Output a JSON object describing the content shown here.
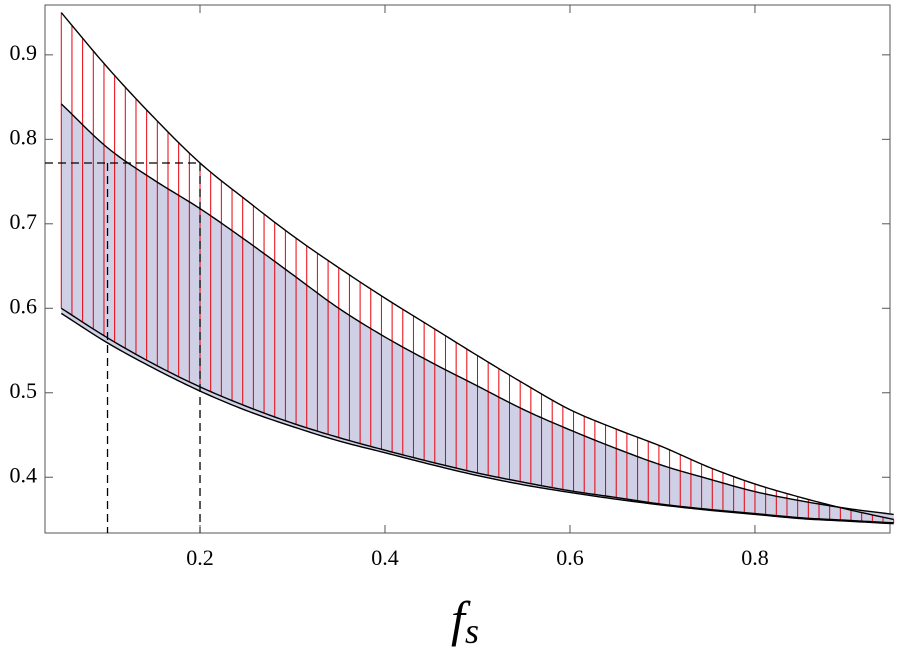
{
  "chart_data": {
    "type": "line",
    "x_label": "f",
    "x_label_subscript": "s",
    "x": [
      0.05,
      0.1,
      0.15,
      0.2,
      0.25,
      0.3,
      0.35,
      0.4,
      0.45,
      0.5,
      0.55,
      0.6,
      0.65,
      0.7,
      0.75,
      0.8,
      0.85,
      0.9,
      0.95
    ],
    "series": [
      {
        "color": "#000000",
        "values": [
          0.95,
          0.885,
          0.826,
          0.772,
          0.728,
          0.686,
          0.648,
          0.612,
          0.578,
          0.544,
          0.511,
          0.48,
          0.457,
          0.436,
          0.412,
          0.392,
          0.376,
          0.362,
          0.35
        ]
      },
      {
        "color": "#000000",
        "values": [
          0.842,
          0.79,
          0.752,
          0.718,
          0.68,
          0.64,
          0.6,
          0.566,
          0.536,
          0.508,
          0.48,
          0.456,
          0.434,
          0.414,
          0.398,
          0.383,
          0.372,
          0.363,
          0.356
        ]
      },
      {
        "color": "#000000",
        "values": [
          0.6,
          0.565,
          0.534,
          0.507,
          0.484,
          0.464,
          0.447,
          0.432,
          0.418,
          0.405,
          0.394,
          0.384,
          0.376,
          0.368,
          0.362,
          0.357,
          0.352,
          0.349,
          0.346
        ]
      },
      {
        "color": "#000000",
        "values": [
          0.594,
          0.559,
          0.529,
          0.502,
          0.479,
          0.46,
          0.443,
          0.429,
          0.415,
          0.402,
          0.391,
          0.382,
          0.374,
          0.367,
          0.361,
          0.356,
          0.351,
          0.348,
          0.345
        ]
      }
    ],
    "band_fill": "#cfcfe6",
    "hatch_color": "#e8000b",
    "reference_lines": {
      "y": 0.772,
      "x": [
        0.1,
        0.2
      ]
    },
    "xlim": [
      0.0324,
      0.946
    ],
    "ylim": [
      0.334,
      0.959
    ],
    "xticks": [
      0.2,
      0.4,
      0.6,
      0.8
    ],
    "yticks": [
      0.4,
      0.5,
      0.6,
      0.7,
      0.8,
      0.9
    ]
  }
}
